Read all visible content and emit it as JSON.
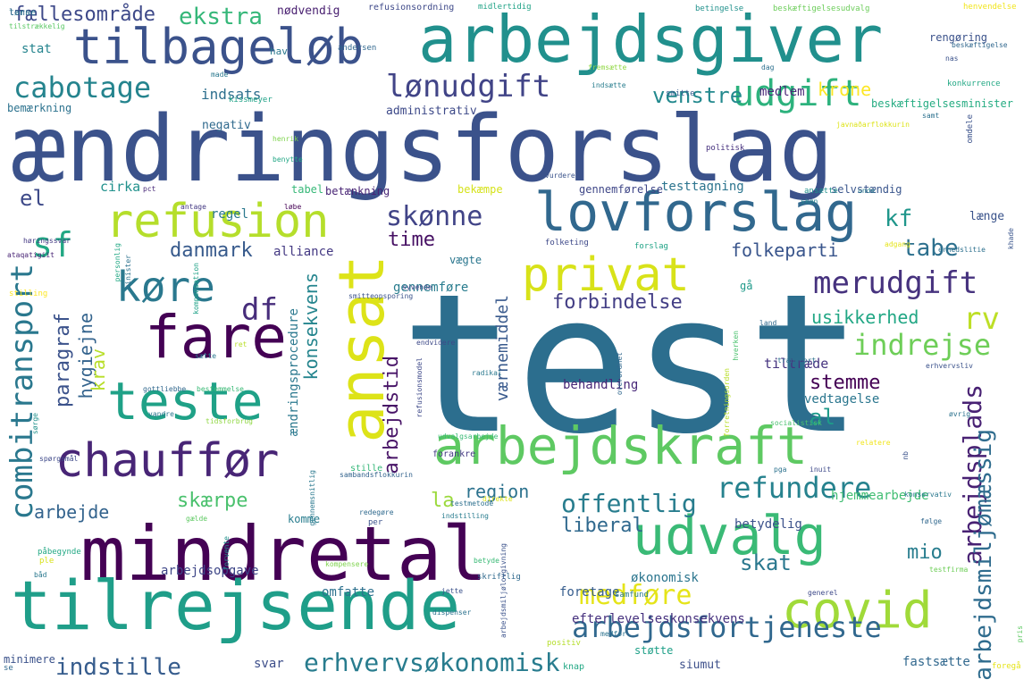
{
  "words": [
    {
      "text": "test",
      "color": "#2c6e8e"
    },
    {
      "text": "ændringsforslag",
      "color": "#3b528b"
    },
    {
      "text": "arbejdsgiver",
      "color": "#21908d"
    },
    {
      "text": "tilbageløb",
      "color": "#3b528b"
    },
    {
      "text": "mindretal",
      "color": "#440154"
    },
    {
      "text": "tilrejsende",
      "color": "#1f9e89"
    },
    {
      "text": "ansat",
      "color": "#dde318"
    },
    {
      "text": "lovforslag",
      "color": "#31688e"
    },
    {
      "text": "refusion",
      "color": "#b5de2b"
    },
    {
      "text": "arbejdskraft",
      "color": "#5ec962"
    },
    {
      "text": "udvalg",
      "color": "#3aba76"
    },
    {
      "text": "covid",
      "color": "#a0da39"
    },
    {
      "text": "fare",
      "color": "#440154"
    },
    {
      "text": "teste",
      "color": "#1fa187"
    },
    {
      "text": "chauffør",
      "color": "#482576"
    },
    {
      "text": "privat",
      "color": "#d8e219"
    },
    {
      "text": "køre",
      "color": "#2a788e"
    },
    {
      "text": "udgift",
      "color": "#2db27d"
    },
    {
      "text": "cabotage",
      "color": "#25848e"
    },
    {
      "text": "lønudgift",
      "color": "#414487"
    },
    {
      "text": "combitransport",
      "color": "#2a788e"
    },
    {
      "text": "merudgift",
      "color": "#46327e"
    },
    {
      "text": "arbejdsfortjeneste",
      "color": "#31688e"
    },
    {
      "text": "refundere",
      "color": "#26828e"
    },
    {
      "text": "medføre",
      "color": "#e5e419"
    },
    {
      "text": "erhvervsøkonomisk",
      "color": "#287c8e"
    },
    {
      "text": "indstille",
      "color": "#365c8d"
    },
    {
      "text": "skønne",
      "color": "#414487"
    },
    {
      "text": "df",
      "color": "#472d7b"
    },
    {
      "text": "sf",
      "color": "#22a884"
    },
    {
      "text": "el",
      "color": "#3e4a89"
    },
    {
      "text": "rv",
      "color": "#bddf26"
    },
    {
      "text": "indrejse",
      "color": "#6ece58"
    },
    {
      "text": "arbejdsplads",
      "color": "#482173"
    },
    {
      "text": "arbejdsmiljømæssig",
      "color": "#2f6c8e"
    },
    {
      "text": "ekstra",
      "color": "#35b779"
    },
    {
      "text": "fællesområde",
      "color": "#3e4989"
    },
    {
      "text": "venstre",
      "color": "#23898e"
    },
    {
      "text": "krone",
      "color": "#fde725"
    },
    {
      "text": "stemme",
      "color": "#440154"
    },
    {
      "text": "offentlig",
      "color": "#287d8e"
    },
    {
      "text": "region",
      "color": "#2c728e"
    },
    {
      "text": "skærpe",
      "color": "#4ac16d"
    },
    {
      "text": "arbejde",
      "color": "#33638d"
    },
    {
      "text": "danmark",
      "color": "#375a8c"
    },
    {
      "text": "folkeparti",
      "color": "#39558c"
    },
    {
      "text": "forbindelse",
      "color": "#433e85"
    },
    {
      "text": "tabe",
      "color": "#2d708e"
    },
    {
      "text": "kf",
      "color": "#1f968b"
    },
    {
      "text": "time",
      "color": "#471164"
    },
    {
      "text": "usikkerhed",
      "color": "#22a785"
    },
    {
      "text": "konsekvens",
      "color": "#25858e"
    },
    {
      "text": "hygiejne",
      "color": "#33638d"
    },
    {
      "text": "paragraf",
      "color": "#3b528b"
    },
    {
      "text": "krav",
      "color": "#b8de29"
    },
    {
      "text": "arbejdstid",
      "color": "#481467"
    },
    {
      "text": "værnemiddel",
      "color": "#38598c"
    },
    {
      "text": "liberal",
      "color": "#30698e"
    },
    {
      "text": "skat",
      "color": "#2a788e"
    },
    {
      "text": "mio",
      "color": "#287d8e"
    },
    {
      "text": "al",
      "color": "#1f9a8a"
    },
    {
      "text": "la",
      "color": "#9bd93c"
    },
    {
      "text": "indsats",
      "color": "#2e6f8e"
    },
    {
      "text": "cirka",
      "color": "#21918c"
    },
    {
      "text": "tiltræde",
      "color": "#463480"
    },
    {
      "text": "behandling",
      "color": "#482878"
    },
    {
      "text": "vedtagelse",
      "color": "#2a768e"
    },
    {
      "text": "hjemmearbejde",
      "color": "#40bd72"
    },
    {
      "text": "betydelig",
      "color": "#3b518b"
    },
    {
      "text": "efterlevelseskonsekvens",
      "color": "#46317e"
    },
    {
      "text": "arbejdsopgave",
      "color": "#3f4788"
    },
    {
      "text": "svar",
      "color": "#3d4e8a"
    },
    {
      "text": "omfatte",
      "color": "#2d718e"
    },
    {
      "text": "foretage",
      "color": "#365d8d"
    },
    {
      "text": "økonomisk",
      "color": "#2b758e"
    },
    {
      "text": "fastsætte",
      "color": "#31688e"
    },
    {
      "text": "støtte",
      "color": "#1fa088"
    },
    {
      "text": "siumut",
      "color": "#3c4f8a"
    },
    {
      "text": "gennemføre",
      "color": "#287c8e"
    },
    {
      "text": "alliance",
      "color": "#443983"
    },
    {
      "text": "testtagning",
      "color": "#2b748e"
    },
    {
      "text": "regel",
      "color": "#2a788e"
    },
    {
      "text": "tabel",
      "color": "#37b878"
    },
    {
      "text": "betænkning",
      "color": "#482475"
    },
    {
      "text": "bekæmpe",
      "color": "#d5e21a"
    },
    {
      "text": "gennemførelse",
      "color": "#3f4788"
    },
    {
      "text": "selvstændig",
      "color": "#39558c"
    },
    {
      "text": "længe",
      "color": "#3a538b"
    },
    {
      "text": "medlem",
      "color": "#482677"
    },
    {
      "text": "negativ",
      "color": "#306a8e"
    },
    {
      "text": "administrativ",
      "color": "#3e4a89"
    },
    {
      "text": "beskæftigelsesminister",
      "color": "#25ac82"
    },
    {
      "text": "rengøring",
      "color": "#3b528b"
    },
    {
      "text": "stat",
      "color": "#25848e"
    },
    {
      "text": "nødvendig",
      "color": "#481f70"
    },
    {
      "text": "refusionsordning",
      "color": "#3e4989"
    },
    {
      "text": "midlertidig",
      "color": "#20a386"
    },
    {
      "text": "betingelse",
      "color": "#21918c"
    },
    {
      "text": "beskæftigelsesudvalg",
      "color": "#6ccd5a"
    },
    {
      "text": "henvendelse",
      "color": "#f1e51d"
    },
    {
      "text": "hav",
      "color": "#2a788e"
    },
    {
      "text": "andersen",
      "color": "#31688e"
    },
    {
      "text": "konkurrence",
      "color": "#22a884"
    },
    {
      "text": "tilstrækkelig",
      "color": "#5ac864"
    },
    {
      "text": "beskæftigelse",
      "color": "#31688e"
    },
    {
      "text": "fremsætte",
      "color": "#90d743"
    },
    {
      "text": "dag",
      "color": "#2d708e"
    },
    {
      "text": "nas",
      "color": "#3b528b"
    },
    {
      "text": "bemærkning",
      "color": "#2c728e"
    },
    {
      "text": "kissmeyer",
      "color": "#1fa187"
    },
    {
      "text": "made",
      "color": "#2a788e"
    },
    {
      "text": "indsætte",
      "color": "#287d8e"
    },
    {
      "text": "smitte",
      "color": "#365d8d"
    },
    {
      "text": "politisk",
      "color": "#46317e"
    },
    {
      "text": "henrik",
      "color": "#7fd34e"
    },
    {
      "text": "benytte",
      "color": "#22a785"
    },
    {
      "text": "samt",
      "color": "#2d718e"
    },
    {
      "text": "omdele",
      "color": "#3b528b"
    },
    {
      "text": "javnaðarflokkurin",
      "color": "#dde318"
    },
    {
      "text": "ansætte",
      "color": "#21918c"
    },
    {
      "text": "vurdere",
      "color": "#3a538b"
    },
    {
      "text": "pct",
      "color": "#482878"
    },
    {
      "text": "antage",
      "color": "#443983"
    },
    {
      "text": "løbe",
      "color": "#440154"
    },
    {
      "text": "unde",
      "color": "#287c8e"
    },
    {
      "text": "skøn",
      "color": "#26828e"
    },
    {
      "text": "forslag",
      "color": "#20a386"
    },
    {
      "text": "folketing",
      "color": "#3e4989"
    },
    {
      "text": "vægte",
      "color": "#2a768e"
    },
    {
      "text": "ataqatigiit",
      "color": "#482475"
    },
    {
      "text": "stilling",
      "color": "#fde725"
    },
    {
      "text": "personlig",
      "color": "#22a884"
    },
    {
      "text": "minister",
      "color": "#2c728e"
    },
    {
      "text": "smitteopsporing",
      "color": "#3b528b"
    },
    {
      "text": "syvende",
      "color": "#414487"
    },
    {
      "text": "adgang",
      "color": "#e5e419"
    },
    {
      "text": "khade",
      "color": "#39558c"
    },
    {
      "text": "sætte",
      "color": "#2a788e"
    },
    {
      "text": "endvidere",
      "color": "#3e4a89"
    },
    {
      "text": "land",
      "color": "#306a8e"
    },
    {
      "text": "hverken",
      "color": "#4ac16d"
    },
    {
      "text": "forretningsorden",
      "color": "#b8de29"
    },
    {
      "text": "transport",
      "color": "#2d718e"
    },
    {
      "text": "erhvervsliv",
      "color": "#3b528b"
    },
    {
      "text": "gottliebbe",
      "color": "#31688e"
    },
    {
      "text": "bestemmelse",
      "color": "#3aba76"
    },
    {
      "text": "refusionsmodel",
      "color": "#3e4989"
    },
    {
      "text": "radikal",
      "color": "#2a788e"
    },
    {
      "text": "øvrig",
      "color": "#2c728e"
    },
    {
      "text": "vandre",
      "color": "#2a768e"
    },
    {
      "text": "tidsforbrug",
      "color": "#90d743"
    },
    {
      "text": "forankre",
      "color": "#443983"
    },
    {
      "text": "socialistisk",
      "color": "#4ac16d"
    },
    {
      "text": "relatere",
      "color": "#f1e51d"
    },
    {
      "text": "sørge",
      "color": "#21918c"
    },
    {
      "text": "udvalgsarbejde",
      "color": "#3aba76"
    },
    {
      "text": "pga",
      "color": "#2c728e"
    },
    {
      "text": "spørgsmål",
      "color": "#3e4989"
    },
    {
      "text": "sambandsflokkurin",
      "color": "#33638d"
    },
    {
      "text": "direkte",
      "color": "#dde318"
    },
    {
      "text": "konservativ",
      "color": "#2a788e"
    },
    {
      "text": "gælde",
      "color": "#5ec962"
    },
    {
      "text": "redegøre",
      "color": "#306a8e"
    },
    {
      "text": "per",
      "color": "#3b528b"
    },
    {
      "text": "indstilling",
      "color": "#287c8e"
    },
    {
      "text": "testmetode",
      "color": "#2d708e"
    },
    {
      "text": "følge",
      "color": "#31688e"
    },
    {
      "text": "påbegynde",
      "color": "#22a884"
    },
    {
      "text": "ple",
      "color": "#d8e219"
    },
    {
      "text": "båd",
      "color": "#2a788e"
    },
    {
      "text": "betyde",
      "color": "#3aba76"
    },
    {
      "text": "jette",
      "color": "#3b528b"
    },
    {
      "text": "dispenser",
      "color": "#2c728e"
    },
    {
      "text": "skriftlig",
      "color": "#306a8e"
    },
    {
      "text": "samfund",
      "color": "#287c8e"
    },
    {
      "text": "testfirma",
      "color": "#6ece58"
    },
    {
      "text": "generel",
      "color": "#3e4989"
    },
    {
      "text": "kompensere",
      "color": "#7fd34e"
    },
    {
      "text": "positiv",
      "color": "#b5de2b"
    },
    {
      "text": "medfør",
      "color": "#2c728e"
    },
    {
      "text": "minimere",
      "color": "#3b528b"
    },
    {
      "text": "se",
      "color": "#31688e"
    },
    {
      "text": "knap",
      "color": "#22a884"
    },
    {
      "text": "foregå",
      "color": "#e5e419"
    },
    {
      "text": "pris",
      "color": "#5ec962"
    },
    {
      "text": "forvente",
      "color": "#21918c"
    },
    {
      "text": "arbejdsmiljølovgivning",
      "color": "#3b528b"
    },
    {
      "text": "gennemsnitlig",
      "color": "#2a788e"
    },
    {
      "text": "ret",
      "color": "#b8de29"
    },
    {
      "text": "overordnet",
      "color": "#31688e"
    },
    {
      "text": "kompensation",
      "color": "#1fa187"
    },
    {
      "text": "høringssvar",
      "color": "#443983"
    },
    {
      "text": "ændringsprocedure",
      "color": "#2a788e"
    },
    {
      "text": "gå",
      "color": "#1f9a8a"
    },
    {
      "text": "stille",
      "color": "#35b779"
    },
    {
      "text": "komme",
      "color": "#287c8e"
    },
    {
      "text": "nb",
      "color": "#3b528b"
    },
    {
      "text": "inuit",
      "color": "#3e4989"
    },
    {
      "text": "erhedslitie",
      "color": "#2d708e"
    },
    {
      "text": "tørne",
      "color": "#2a788e"
    },
    {
      "text": "lens",
      "color": "#31688e"
    }
  ]
}
